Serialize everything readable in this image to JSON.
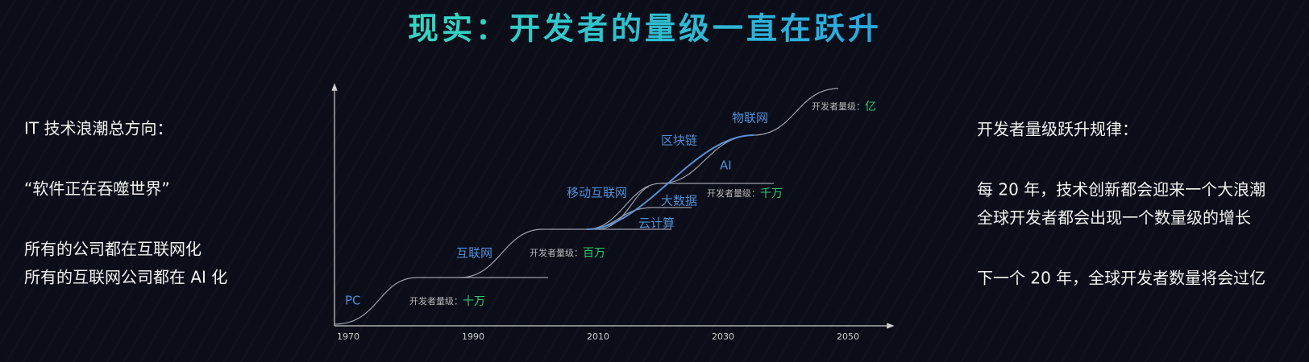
{
  "title": "现实：开发者的量级一直在跃升",
  "left": [
    "IT 技术浪潮总方向：",
    "“软件正在吞噬世界”",
    "所有的公司都在互联网化",
    "所有的互联网公司都在 AI 化"
  ],
  "right": [
    "开发者量级跃升规律：",
    "每 20 年，技术创新都会迎来一个大浪潮",
    "全球开发者都会出现一个数量级的增长",
    "下一个 20 年，全球开发者数量将会过亿"
  ],
  "diagram": {
    "years": [
      "1970",
      "1990",
      "2010",
      "2030",
      "2050"
    ],
    "waves": [
      "PC",
      "互联网",
      "云计算",
      "大数据",
      "移动互联网",
      "AI",
      "区块链",
      "物联网"
    ],
    "levels": [
      {
        "prefix": "开发者量级：",
        "value": "十万"
      },
      {
        "prefix": "开发者量级：",
        "value": "百万"
      },
      {
        "prefix": "开发者量级：",
        "value": "千万"
      },
      {
        "prefix": "开发者量级：",
        "value": "亿"
      }
    ]
  }
}
